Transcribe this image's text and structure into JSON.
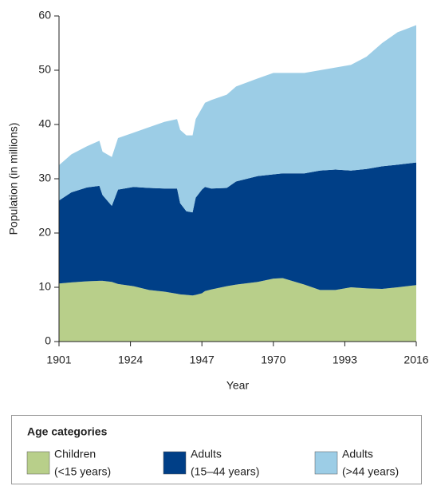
{
  "chart_data": {
    "type": "stacked_area",
    "xlabel": "Year",
    "ylabel": "Population (in millions)",
    "legend_title": "Age categories",
    "x": [
      1901,
      1905,
      1910,
      1914,
      1915,
      1918,
      1920,
      1925,
      1930,
      1935,
      1939,
      1940,
      1942,
      1944,
      1945,
      1947,
      1948,
      1950,
      1955,
      1958,
      1965,
      1970,
      1973,
      1980,
      1985,
      1990,
      1995,
      2000,
      2005,
      2010,
      2016
    ],
    "series": [
      {
        "name": [
          "Children",
          "(<15 years)"
        ],
        "color": "#b8cf8a",
        "values": [
          10.7,
          10.9,
          11.1,
          11.2,
          11.2,
          11.0,
          10.6,
          10.2,
          9.5,
          9.2,
          8.8,
          8.7,
          8.6,
          8.5,
          8.6,
          8.9,
          9.3,
          9.6,
          10.2,
          10.5,
          11.0,
          11.6,
          11.7,
          10.5,
          9.5,
          9.5,
          10.0,
          9.8,
          9.7,
          10.0,
          10.4
        ]
      },
      {
        "name": [
          "Adults",
          "(15–44 years)"
        ],
        "color": "#003f87",
        "values": [
          15.3,
          16.6,
          17.3,
          17.5,
          15.8,
          14.0,
          17.4,
          18.3,
          18.8,
          19.0,
          19.4,
          16.8,
          15.4,
          15.3,
          17.9,
          19.1,
          19.2,
          18.6,
          18.1,
          19.0,
          19.5,
          19.2,
          19.3,
          20.5,
          22.0,
          22.2,
          21.5,
          22.0,
          22.6,
          22.6,
          22.6
        ]
      },
      {
        "name": [
          "Adults",
          "(>44 years)"
        ],
        "color": "#9ccde6",
        "values": [
          6.5,
          7.0,
          7.6,
          8.3,
          8.0,
          9.0,
          9.5,
          10.0,
          11.2,
          12.3,
          12.8,
          13.5,
          14.0,
          14.2,
          14.5,
          15.0,
          15.5,
          16.3,
          17.2,
          17.5,
          18.0,
          18.7,
          18.5,
          18.5,
          18.5,
          18.8,
          19.5,
          20.7,
          22.7,
          24.4,
          25.3
        ]
      }
    ],
    "xlim": [
      1901,
      2016
    ],
    "xticks": [
      1901,
      1924,
      1947,
      1970,
      1993,
      2016
    ],
    "ylim": [
      0,
      60
    ],
    "yticks": [
      0,
      10,
      20,
      30,
      40,
      50,
      60
    ]
  }
}
